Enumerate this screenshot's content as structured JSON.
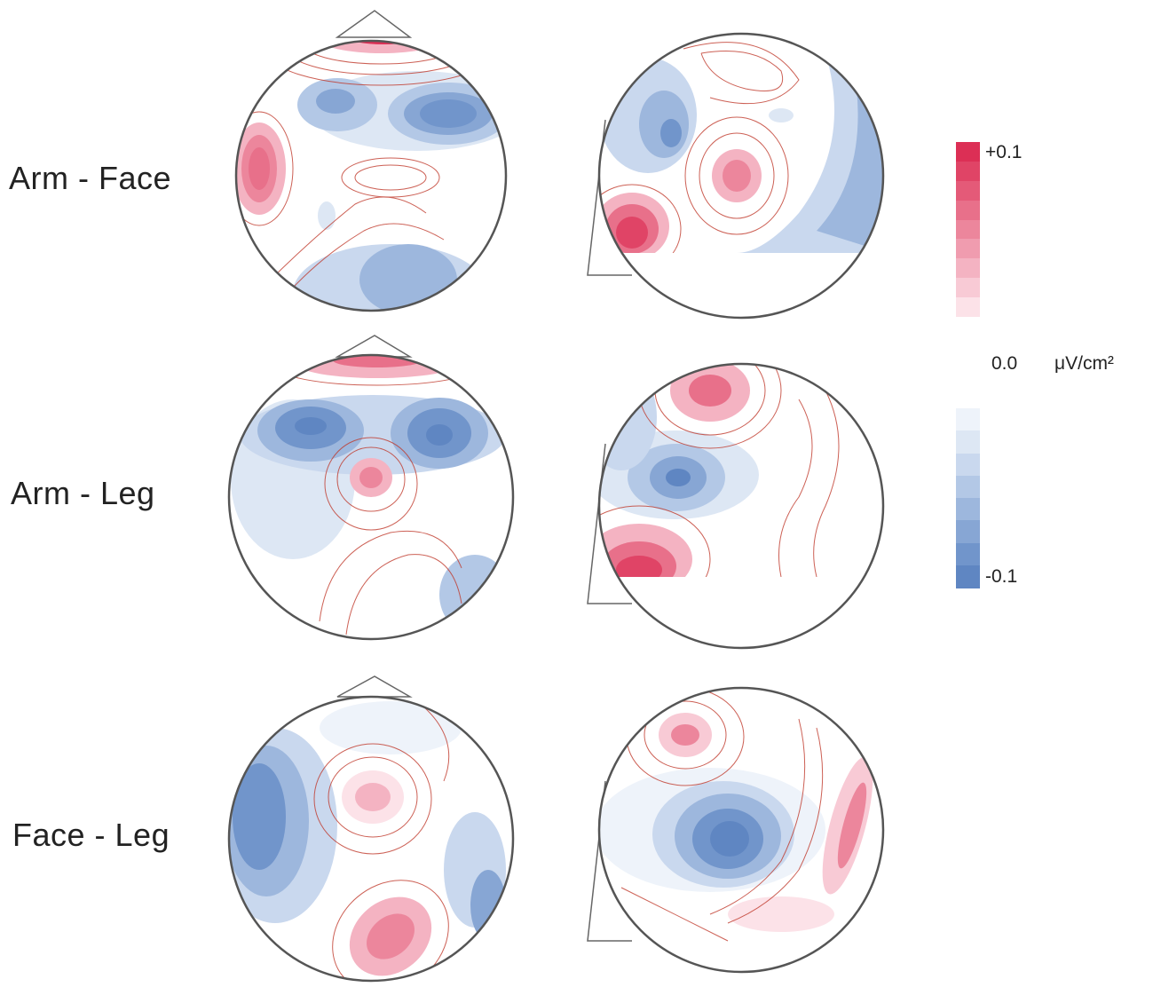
{
  "rows": [
    {
      "label": "Arm - Face"
    },
    {
      "label": "Arm - Leg"
    },
    {
      "label": "Face - Leg"
    }
  ],
  "legend": {
    "max_label": "+0.1",
    "zero_label": "0.0",
    "unit": "μV/cm²",
    "min_label": "-0.1",
    "positive_colors": [
      "#dc2f55",
      "#e04466",
      "#e45a78",
      "#e8708a",
      "#ec869c",
      "#f09caf",
      "#f4b3c2",
      "#f8cad5",
      "#fce2e8"
    ],
    "negative_colors": [
      "#eef3fa",
      "#dde7f4",
      "#c9d8ee",
      "#b3c8e6",
      "#9db7dd",
      "#87a6d4",
      "#7195cb",
      "#5f86c2"
    ]
  }
}
